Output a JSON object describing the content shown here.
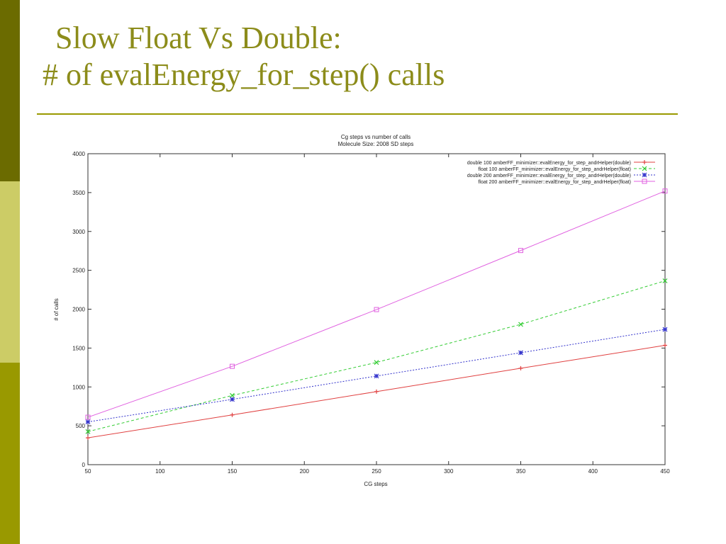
{
  "slide": {
    "title_line1": "Slow Float Vs Double:",
    "title_line2": "# of evalEnergy_for_step() calls",
    "accent_colors": [
      "#6b6b00",
      "#cccc66",
      "#999900"
    ],
    "title_color": "#8c8c1a"
  },
  "chart_data": {
    "type": "line",
    "title": "Cg steps vs number of calls",
    "subtitle": "Molecule Size: 2008 SD steps",
    "xlabel": "CG steps",
    "ylabel": "# of calls",
    "xlim": [
      50,
      450
    ],
    "ylim": [
      0,
      4000
    ],
    "xticks": [
      50,
      100,
      150,
      200,
      250,
      300,
      350,
      400,
      450
    ],
    "yticks": [
      0,
      500,
      1000,
      1500,
      2000,
      2500,
      3000,
      3500,
      4000
    ],
    "grid": false,
    "legend_position": "top-right",
    "series": [
      {
        "name": "double 100 amberFF_minimizer::evalEnergy_for_step_andrHelper(double)",
        "color": "#e04040",
        "marker": "plus",
        "dash": "solid",
        "x": [
          50,
          150,
          250,
          350,
          450
        ],
        "y": [
          345,
          640,
          940,
          1240,
          1535
        ]
      },
      {
        "name": "float 100 amberFF_minimizer::evalEnergy_for_step_andrHelper(float)",
        "color": "#33cc33",
        "marker": "x",
        "dash": "dashed",
        "x": [
          50,
          150,
          250,
          350,
          450
        ],
        "y": [
          425,
          890,
          1315,
          1805,
          2365
        ]
      },
      {
        "name": "double 200 amberFF_minimizer::evalEnergy_for_step_andrHelper(double)",
        "color": "#3333cc",
        "marker": "star",
        "dash": "dotted",
        "x": [
          50,
          150,
          250,
          350,
          450
        ],
        "y": [
          550,
          840,
          1140,
          1440,
          1740
        ]
      },
      {
        "name": "float 200 amberFF_minimizer::evalEnergy_for_step_andrHelper(float)",
        "color": "#e060e0",
        "marker": "square",
        "dash": "solid",
        "x": [
          50,
          150,
          250,
          350,
          450
        ],
        "y": [
          610,
          1265,
          1995,
          2755,
          3520
        ]
      }
    ]
  }
}
